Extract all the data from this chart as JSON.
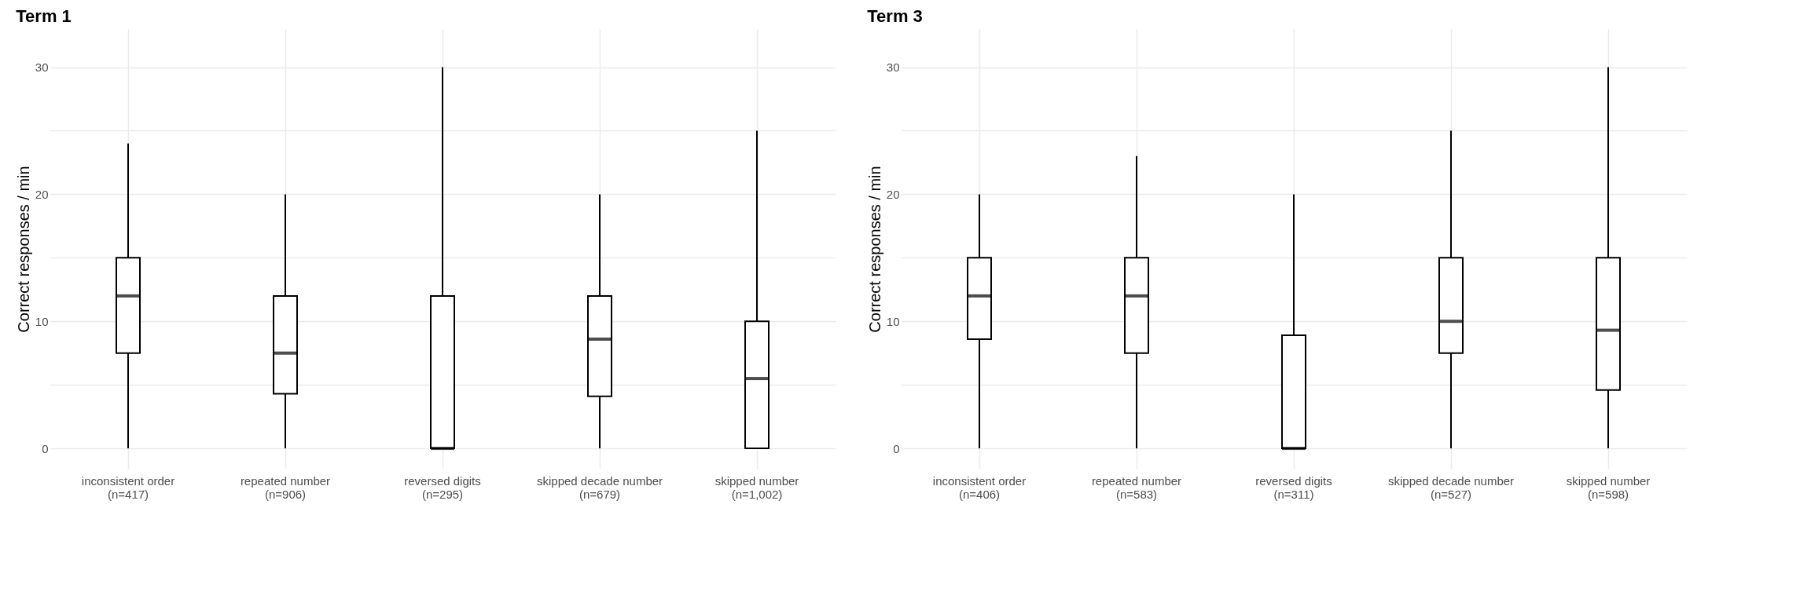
{
  "chart_data": [
    {
      "type": "box",
      "title": "Term 1",
      "ylabel": "Correct responses / min",
      "categories": [
        "inconsistent order\n(n=417)",
        "repeated number\n(n=906)",
        "reversed digits\n(n=295)",
        "skipped decade number\n(n=679)",
        "skipped number\n(n=1,002)"
      ],
      "boxes": [
        {
          "low": 0,
          "q1": 7.5,
          "median": 12,
          "q3": 15,
          "high": 24
        },
        {
          "low": 0,
          "q1": 4.3,
          "median": 7.5,
          "q3": 12,
          "high": 20
        },
        {
          "low": 0,
          "q1": 0,
          "median": 0,
          "q3": 12,
          "high": 30
        },
        {
          "low": 0,
          "q1": 4.1,
          "median": 8.6,
          "q3": 12,
          "high": 20
        },
        {
          "low": 0,
          "q1": 0,
          "median": 5.5,
          "q3": 10,
          "high": 25
        }
      ],
      "ylim": [
        -1.6,
        33
      ],
      "yticks": [
        0,
        {
          "value": 5,
          "label": null
        },
        10,
        {
          "value": 15,
          "label": null
        },
        20,
        {
          "value": 25,
          "label": null
        },
        30
      ],
      "grid": true
    },
    {
      "type": "box",
      "title": "Term 3",
      "ylabel": "Correct responses / min",
      "categories": [
        "inconsistent order\n(n=406)",
        "repeated number\n(n=583)",
        "reversed digits\n(n=311)",
        "skipped decade number\n(n=527)",
        "skipped number\n(n=598)"
      ],
      "boxes": [
        {
          "low": 0,
          "q1": 8.6,
          "median": 12,
          "q3": 15,
          "high": 20
        },
        {
          "low": 0,
          "q1": 7.5,
          "median": 12,
          "q3": 15,
          "high": 23
        },
        {
          "low": 0,
          "q1": 0,
          "median": 0,
          "q3": 8.9,
          "high": 20
        },
        {
          "low": 0,
          "q1": 7.5,
          "median": 10,
          "q3": 15,
          "high": 25
        },
        {
          "low": 0,
          "q1": 4.6,
          "median": 9.3,
          "q3": 15,
          "high": 30
        }
      ],
      "ylim": [
        -1.6,
        33
      ],
      "yticks": [
        0,
        {
          "value": 5,
          "label": null
        },
        10,
        {
          "value": 15,
          "label": null
        },
        20,
        {
          "value": 25,
          "label": null
        },
        30
      ],
      "grid": true
    }
  ]
}
